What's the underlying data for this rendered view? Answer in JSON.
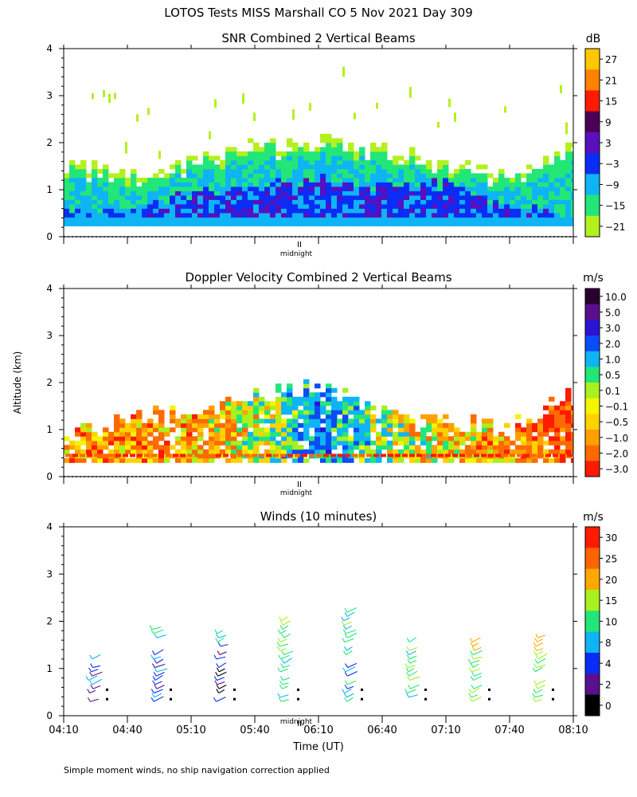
{
  "figure_title": "LOTOS Tests MISS Marshall CO   5 Nov 2021 Day 309",
  "y_axis_label": "Altitude (km)",
  "x_axis_label": "Time (UT)",
  "footnote": "Simple moment winds, no ship navigation correction applied",
  "midnight_label": "midnight",
  "time_ticks": [
    "04:10",
    "04:40",
    "05:10",
    "05:40",
    "06:10",
    "06:40",
    "07:10",
    "07:40",
    "08:10"
  ],
  "altitude_ticks": [
    "0",
    "1",
    "2",
    "3",
    "4"
  ],
  "chart_data": [
    {
      "type": "heatmap",
      "title": "SNR Combined 2 Vertical Beams",
      "colorbar_unit": "dB",
      "colorbar_labels": [
        "27",
        "21",
        "15",
        "9",
        "3",
        "−3",
        "−9",
        "−15",
        "−21"
      ],
      "colorbar_colors": [
        "#ffc800",
        "#ff8200",
        "#ff1a00",
        "#4a0055",
        "#5a0fbe",
        "#0a2cf5",
        "#0fb4f5",
        "#23e678",
        "#b4f01e"
      ],
      "xlim": [
        "04:10",
        "08:10"
      ],
      "ylim": [
        0,
        4
      ],
      "ylabel": "Altitude (km)",
      "profile_times": [
        "04:10",
        "04:40",
        "05:10",
        "05:40",
        "06:10",
        "06:40",
        "07:10",
        "07:40",
        "08:10"
      ],
      "echo_top_km": [
        1.5,
        1.3,
        1.6,
        1.9,
        2.0,
        1.8,
        1.5,
        1.3,
        1.9
      ],
      "high_snr_top_km": [
        0.5,
        0.5,
        0.9,
        1.0,
        1.2,
        1.0,
        1.1,
        0.6,
        0.4
      ]
    },
    {
      "type": "heatmap",
      "title": "Doppler Velocity Combined 2 Vertical Beams",
      "colorbar_unit": "m/s",
      "colorbar_labels": [
        "10.0",
        "5.0",
        "3.0",
        "2.0",
        "1.0",
        "0.5",
        "0.1",
        "−0.1",
        "−0.5",
        "−1.0",
        "−2.0",
        "−3.0"
      ],
      "colorbar_colors": [
        "#2a0030",
        "#5a0f8c",
        "#2a14d2",
        "#0a4cf5",
        "#0fb4f5",
        "#23e678",
        "#a8f01e",
        "#f5f500",
        "#ffd200",
        "#ffa000",
        "#ff6a00",
        "#ff1a00"
      ],
      "xlim": [
        "04:10",
        "08:10"
      ],
      "ylim": [
        0,
        4
      ],
      "ylabel": "Altitude (km)",
      "profile_times": [
        "04:10",
        "04:40",
        "05:10",
        "05:40",
        "06:10",
        "06:40",
        "07:10",
        "07:40",
        "08:10"
      ],
      "echo_top_km": [
        0.9,
        1.2,
        1.3,
        1.7,
        1.9,
        1.3,
        1.1,
        1.0,
        1.8
      ],
      "mean_velocity_ms": [
        -1.0,
        -1.0,
        -1.0,
        0.1,
        2.0,
        0.5,
        -0.5,
        -1.0,
        -2.0
      ]
    },
    {
      "type": "scatter",
      "title": "Winds (10 minutes)",
      "colorbar_unit": "m/s",
      "colorbar_labels": [
        "30",
        "25",
        "20",
        "15",
        "10",
        "8",
        "4",
        "2",
        "0"
      ],
      "colorbar_colors": [
        "#ff1a00",
        "#ff6400",
        "#ffa800",
        "#a8f01e",
        "#23e678",
        "#0fb4f5",
        "#0a2cf5",
        "#5a0f8c",
        "#000000"
      ],
      "xlim": [
        "04:10",
        "08:10"
      ],
      "ylim": [
        0,
        4
      ],
      "xlabel": "Time (UT)",
      "ylabel": "Altitude (km)",
      "profile_times": [
        "04:25",
        "04:55",
        "05:25",
        "05:55",
        "06:25",
        "06:55",
        "07:25",
        "07:55"
      ],
      "profile_top_km": [
        1.4,
        1.9,
        1.9,
        2.1,
        2.2,
        1.6,
        1.6,
        1.7
      ],
      "dominant_speed_ms": [
        6,
        6,
        4,
        12,
        8,
        12,
        14,
        16
      ]
    }
  ]
}
